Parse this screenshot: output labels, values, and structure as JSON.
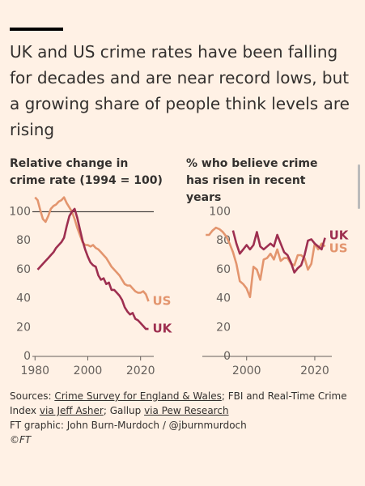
{
  "title": "UK and US crime rates have been falling for decades and are near record lows, but a growing share of people think levels are rising",
  "sources": [
    "Sources: ",
    "Crime Survey for England & Wales",
    "; FBI and Real-Time Crime Index ",
    "via Jeff Asher",
    "; Gallup ",
    "via Pew Research"
  ],
  "credit": "FT graphic: John Burn-Murdoch / @jburnmurdoch",
  "copyright": "©FT",
  "chart_data": [
    {
      "type": "line",
      "title": "Relative change in crime rate (1994 = 100)",
      "x": [
        1980,
        1981,
        1982,
        1983,
        1984,
        1985,
        1986,
        1987,
        1988,
        1989,
        1990,
        1991,
        1992,
        1993,
        1994,
        1995,
        1996,
        1997,
        1998,
        1999,
        2000,
        2001,
        2002,
        2003,
        2004,
        2005,
        2006,
        2007,
        2008,
        2009,
        2010,
        2011,
        2012,
        2013,
        2014,
        2015,
        2016,
        2017,
        2018,
        2019,
        2020,
        2021,
        2022,
        2023
      ],
      "series": [
        {
          "name": "US",
          "color": "#e3956e",
          "values": [
            110,
            108,
            101,
            95,
            93,
            97,
            102,
            104,
            105,
            107,
            108,
            110,
            106,
            103,
            100,
            95,
            89,
            84,
            79,
            77,
            77,
            76,
            77,
            75,
            74,
            72,
            70,
            68,
            65,
            62,
            60,
            58,
            56,
            53,
            50,
            49,
            49,
            47,
            45,
            44,
            44,
            45,
            43,
            38
          ]
        },
        {
          "name": "UK",
          "color": "#9e2f50",
          "values": [
            null,
            60,
            62,
            64,
            66,
            68,
            70,
            72,
            75,
            77,
            79,
            82,
            90,
            97,
            100,
            102,
            96,
            88,
            80,
            74,
            69,
            65,
            63,
            62,
            56,
            53,
            54,
            50,
            51,
            46,
            46,
            44,
            42,
            39,
            34,
            31,
            29,
            30,
            26,
            25,
            23,
            21,
            19,
            19
          ]
        }
      ],
      "xlim": [
        1979,
        2025
      ],
      "ylim": [
        0,
        112
      ],
      "xticks": [
        1980,
        2000,
        2020
      ],
      "yticks": [
        0,
        20,
        40,
        60,
        80,
        100
      ],
      "reference_line": 100,
      "grid": false
    },
    {
      "type": "line",
      "title": "% who believe crime has risen in recent years",
      "x": [
        1988,
        1989,
        1990,
        1991,
        1992,
        1993,
        1994,
        1995,
        1996,
        1997,
        1998,
        1999,
        2000,
        2001,
        2002,
        2003,
        2004,
        2005,
        2006,
        2007,
        2008,
        2009,
        2010,
        2011,
        2012,
        2013,
        2014,
        2015,
        2016,
        2017,
        2018,
        2019,
        2020,
        2021,
        2022,
        2023
      ],
      "series": [
        {
          "name": "US",
          "color": "#e3956e",
          "values": [
            84,
            84,
            87,
            89,
            88,
            86,
            83,
            78,
            72,
            64,
            52,
            50,
            47,
            41,
            62,
            60,
            53,
            67,
            68,
            71,
            67,
            74,
            66,
            68,
            68,
            64,
            63,
            70,
            70,
            68,
            60,
            64,
            78,
            74,
            78,
            76
          ]
        },
        {
          "name": "UK",
          "color": "#9e2f50",
          "values": [
            null,
            null,
            null,
            null,
            null,
            null,
            null,
            null,
            87,
            78,
            71,
            74,
            77,
            74,
            77,
            86,
            76,
            74,
            76,
            78,
            76,
            84,
            78,
            72,
            70,
            65,
            58,
            61,
            63,
            70,
            80,
            81,
            78,
            76,
            74,
            82
          ]
        }
      ],
      "xlim": [
        1987,
        2025
      ],
      "ylim": [
        0,
        112
      ],
      "xticks": [
        2000,
        2020
      ],
      "yticks": [
        0,
        20,
        40,
        60,
        80,
        100
      ],
      "grid": false
    }
  ]
}
